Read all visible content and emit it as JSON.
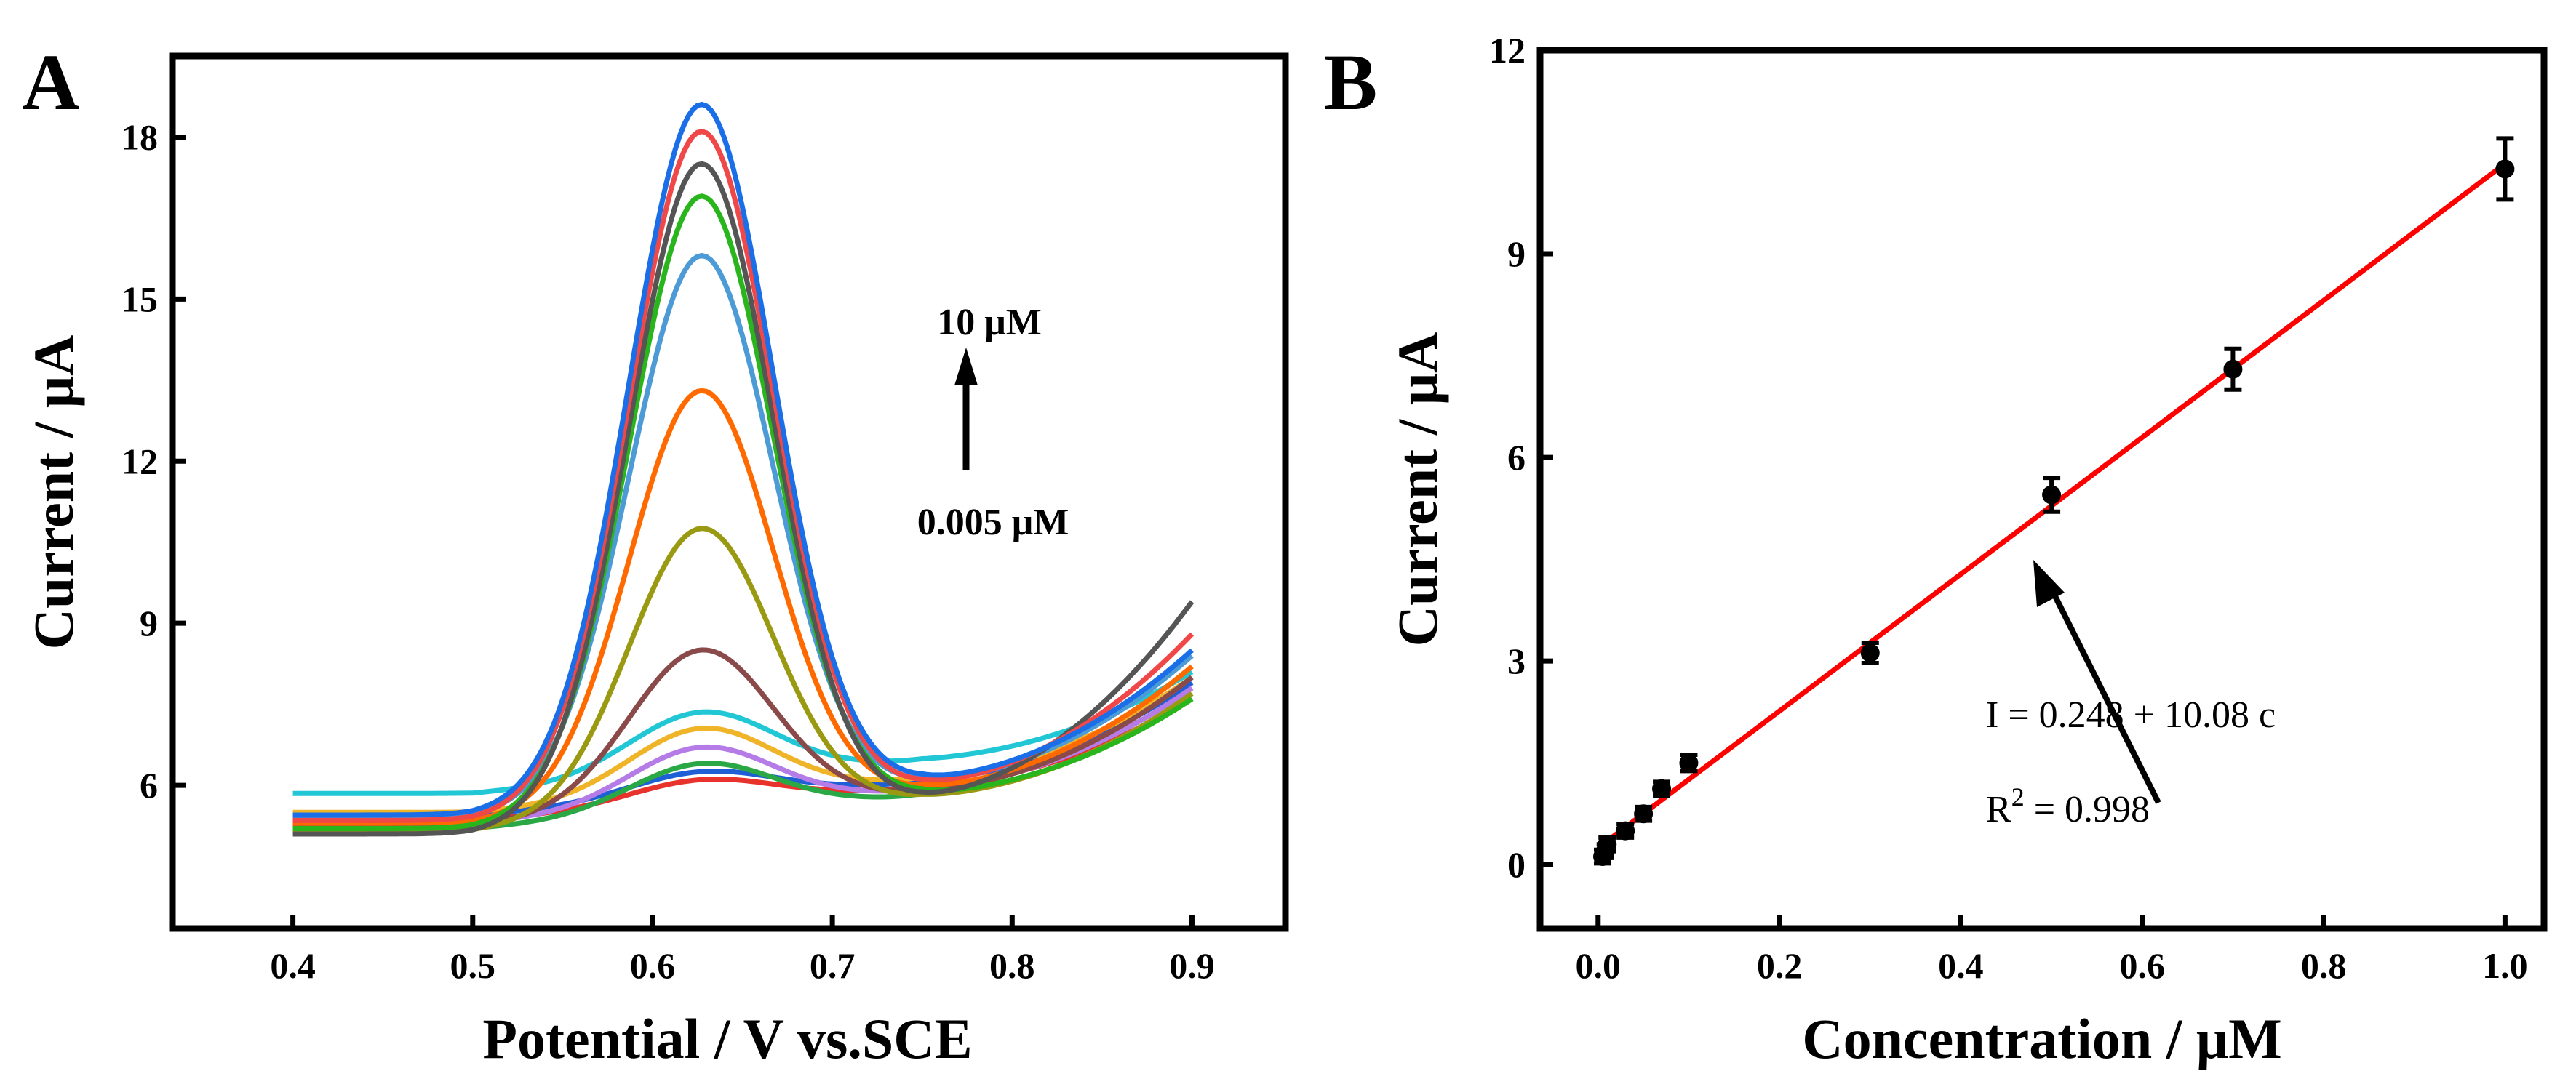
{
  "chart_data": [
    {
      "panel_label": "A",
      "type": "line",
      "title": "",
      "xlabel": "Potential / V vs.SCE",
      "ylabel": "Current / μA",
      "xlim": [
        0.333,
        0.952
      ],
      "ylim": [
        3.35,
        19.5
      ],
      "xticks": [
        "0.4",
        "0.5",
        "0.6",
        "0.7",
        "0.8",
        "0.9"
      ],
      "xtick_values": [
        0.4,
        0.5,
        0.6,
        0.7,
        0.8,
        0.9
      ],
      "yticks": [
        "6",
        "9",
        "12",
        "15",
        "18"
      ],
      "ytick_values": [
        6,
        9,
        12,
        15,
        18
      ],
      "grid": false,
      "peak_potential": 0.627,
      "annotation_top": "10 μM",
      "annotation_bottom": "0.005 μM",
      "series": [
        {
          "color": "#e8322c",
          "baseline": 5.35,
          "peak_current": 5.8,
          "current_at_0_9": 7.6
        },
        {
          "color": "#1f5fd6",
          "baseline": 5.45,
          "peak_current": 5.95,
          "current_at_0_9": 7.9
        },
        {
          "color": "#2aa845",
          "baseline": 5.2,
          "peak_current": 6.1,
          "current_at_0_9": 7.6
        },
        {
          "color": "#b57be6",
          "baseline": 5.3,
          "peak_current": 6.4,
          "current_at_0_9": 7.8
        },
        {
          "color": "#f0b429",
          "baseline": 5.5,
          "peak_current": 6.75,
          "current_at_0_9": 8.0
        },
        {
          "color": "#22c7d6",
          "baseline": 5.85,
          "peak_current": 7.05,
          "current_at_0_9": 8.1
        },
        {
          "color": "#8b4a4a",
          "baseline": 5.25,
          "peak_current": 8.2,
          "current_at_0_9": 8.0
        },
        {
          "color": "#9a9a12",
          "baseline": 5.15,
          "peak_current": 10.45,
          "current_at_0_9": 7.7
        },
        {
          "color": "#ff6a00",
          "baseline": 5.3,
          "peak_current": 13.0,
          "current_at_0_9": 8.2
        },
        {
          "color": "#4d9bd6",
          "baseline": 5.4,
          "peak_current": 15.5,
          "current_at_0_9": 8.4
        },
        {
          "color": "#29b51c",
          "baseline": 5.2,
          "peak_current": 16.6,
          "current_at_0_9": 7.6
        },
        {
          "color": "#555555",
          "baseline": 5.1,
          "peak_current": 17.2,
          "current_at_0_9": 9.4
        },
        {
          "color": "#f04848",
          "baseline": 5.35,
          "peak_current": 17.8,
          "current_at_0_9": 8.8
        },
        {
          "color": "#1a6fe8",
          "baseline": 5.45,
          "peak_current": 18.3,
          "current_at_0_9": 8.5
        }
      ]
    },
    {
      "panel_label": "B",
      "type": "scatter",
      "title": "",
      "xlabel": "Concentration / μM",
      "ylabel": "Current / μA",
      "xlim": [
        -0.064,
        1.043
      ],
      "ylim": [
        -0.94,
        12
      ],
      "xticks": [
        "0.0",
        "0.2",
        "0.4",
        "0.6",
        "0.8",
        "1.0"
      ],
      "xtick_values": [
        0,
        0.2,
        0.4,
        0.6,
        0.8,
        1.0
      ],
      "yticks": [
        "0",
        "3",
        "6",
        "9",
        "12"
      ],
      "ytick_values": [
        0,
        3,
        6,
        9,
        12
      ],
      "grid": false,
      "points": [
        {
          "x": 0.005,
          "y": 0.12,
          "err": 0.1
        },
        {
          "x": 0.008,
          "y": 0.2,
          "err": 0.1
        },
        {
          "x": 0.01,
          "y": 0.3,
          "err": 0.1
        },
        {
          "x": 0.03,
          "y": 0.5,
          "err": 0.1
        },
        {
          "x": 0.05,
          "y": 0.75,
          "err": 0.1
        },
        {
          "x": 0.07,
          "y": 1.12,
          "err": 0.1
        },
        {
          "x": 0.1,
          "y": 1.5,
          "err": 0.12
        },
        {
          "x": 0.3,
          "y": 3.12,
          "err": 0.15
        },
        {
          "x": 0.5,
          "y": 5.45,
          "err": 0.25
        },
        {
          "x": 0.7,
          "y": 7.3,
          "err": 0.3
        },
        {
          "x": 1.0,
          "y": 10.25,
          "err": 0.45
        }
      ],
      "fit": {
        "intercept": 0.248,
        "slope": 10.08,
        "x_range": [
          0.0,
          1.0
        ],
        "color": "#ff0000"
      },
      "equation": "I = 0.248 + 10.08 c",
      "r2_prefix": "R",
      "r2_sup": "2",
      "r2_suffix": " = 0.998"
    }
  ]
}
